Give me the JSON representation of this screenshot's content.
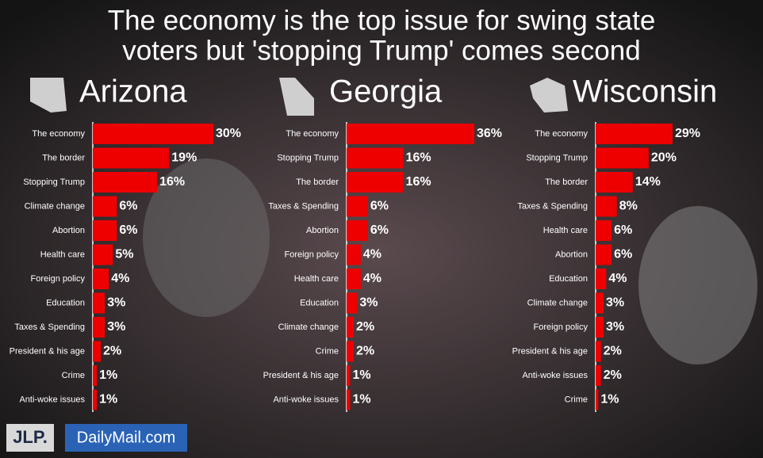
{
  "title": [
    "The economy is the top issue for swing state",
    "voters but 'stopping Trump' comes second"
  ],
  "logos": {
    "jlp": "JLP.",
    "dailymail": "DailyMail.com"
  },
  "chart_data": [
    {
      "type": "bar",
      "orientation": "horizontal",
      "title": "Arizona",
      "color": "#ee0000",
      "categories": [
        "The economy",
        "The border",
        "Stopping Trump",
        "Climate change",
        "Abortion",
        "Health care",
        "Foreign policy",
        "Education",
        "Taxes & Spending",
        "President & his age",
        "Crime",
        "Anti-woke issues"
      ],
      "values": [
        30,
        19,
        16,
        6,
        6,
        5,
        4,
        3,
        3,
        2,
        1,
        1
      ],
      "value_labels": [
        "30%",
        "19%",
        "16%",
        "6%",
        "6%",
        "5%",
        "4%",
        "3%",
        "3%",
        "2%",
        "1%",
        "1%"
      ]
    },
    {
      "type": "bar",
      "orientation": "horizontal",
      "title": "Georgia",
      "color": "#ee0000",
      "categories": [
        "The economy",
        "Stopping Trump",
        "The border",
        "Taxes & Spending",
        "Abortion",
        "Foreign policy",
        "Health care",
        "Education",
        "Climate change",
        "Crime",
        "President & his age",
        "Anti-woke issues"
      ],
      "values": [
        36,
        16,
        16,
        6,
        6,
        4,
        4,
        3,
        2,
        2,
        1,
        1
      ],
      "value_labels": [
        "36%",
        "16%",
        "16%",
        "6%",
        "6%",
        "4%",
        "4%",
        "3%",
        "2%",
        "2%",
        "1%",
        "1%"
      ]
    },
    {
      "type": "bar",
      "orientation": "horizontal",
      "title": "Wisconsin",
      "color": "#ee0000",
      "categories": [
        "The economy",
        "Stopping Trump",
        "The border",
        "Taxes & Spending",
        "Health care",
        "Abortion",
        "Education",
        "Climate change",
        "Foreign policy",
        "President & his age",
        "Anti-woke issues",
        "Crime"
      ],
      "values": [
        29,
        20,
        14,
        8,
        6,
        6,
        4,
        3,
        3,
        2,
        2,
        1
      ],
      "value_labels": [
        "29%",
        "20%",
        "14%",
        "8%",
        "6%",
        "6%",
        "4%",
        "3%",
        "3%",
        "2%",
        "2%",
        "1%"
      ]
    }
  ]
}
